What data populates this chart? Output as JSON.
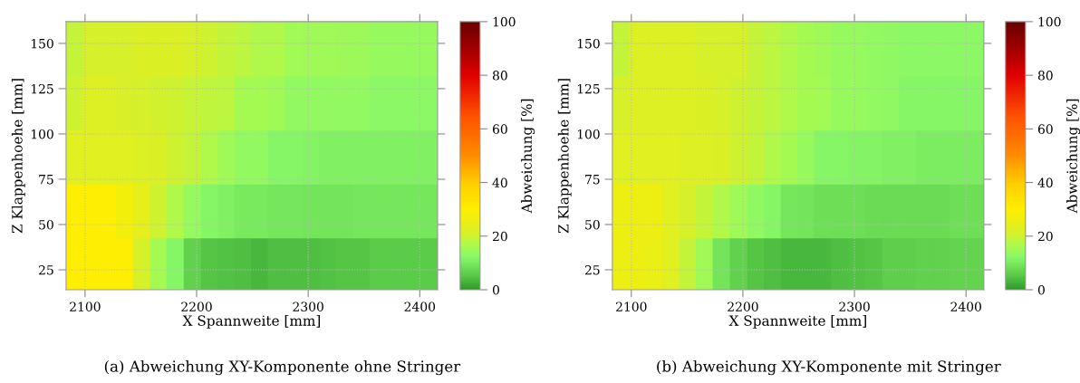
{
  "chart_data": [
    {
      "type": "heatmap",
      "xlabel": "X Spannweite [mm]",
      "ylabel": "Z Klappenhoehe [mm]",
      "clabel": "Abweichung [%]",
      "annotations": [
        "(a) Abweichung XY-Komponente ohne Stringer"
      ],
      "x": [
        2091,
        2106,
        2121,
        2136,
        2151,
        2166,
        2181,
        2197,
        2212,
        2227,
        2242,
        2257,
        2272,
        2287,
        2303,
        2318,
        2333,
        2348,
        2363,
        2378,
        2393,
        2409
      ],
      "y": [
        147,
        117,
        87.5,
        57.5,
        28
      ],
      "cells": [
        [
          19,
          21,
          21,
          21,
          21.5,
          21.5,
          21.5,
          21,
          20,
          19,
          18,
          17,
          17,
          15.5,
          15,
          15,
          14.5,
          14.5,
          14,
          14,
          14,
          14
        ],
        [
          20,
          22,
          22,
          21,
          21,
          20.5,
          20,
          19.5,
          18.5,
          18,
          16,
          16,
          15,
          13.5,
          13.5,
          13.5,
          13.5,
          13.5,
          12.5,
          12.5,
          12.5,
          12.5
        ],
        [
          23,
          23,
          23,
          23,
          22,
          21.5,
          20,
          19,
          17,
          15,
          13.5,
          13.5,
          12,
          12,
          11.5,
          11,
          11,
          11,
          11,
          11,
          11,
          11
        ],
        [
          30,
          30,
          30,
          27,
          24,
          20,
          17,
          14,
          12,
          11,
          10,
          10,
          9.5,
          9.5,
          9,
          9,
          9,
          9.5,
          9.5,
          9.5,
          9.5,
          9.5
        ],
        [
          30,
          30,
          30,
          30,
          21,
          16,
          12,
          6.5,
          5,
          4.5,
          4,
          3.5,
          4,
          4,
          4,
          4.5,
          5,
          5,
          5.5,
          5.5,
          5.5,
          5.5
        ]
      ],
      "xlim": [
        2083,
        2416
      ],
      "ylim": [
        14,
        162
      ],
      "xticks": [
        2100,
        2200,
        2300,
        2400
      ],
      "yticks": [
        25,
        50,
        75,
        100,
        125,
        150
      ],
      "clim": [
        0,
        100
      ],
      "cticks": [
        0,
        20,
        40,
        60,
        80,
        100
      ],
      "grid": true
    },
    {
      "type": "heatmap",
      "xlabel": "X Spannweite [mm]",
      "ylabel": "Z Klappenhoehe [mm]",
      "clabel": "Abweichung [%]",
      "annotations": [
        "(b) Abweichung XY-Komponente mit Stringer"
      ],
      "x": [
        2091,
        2106,
        2121,
        2136,
        2151,
        2166,
        2181,
        2197,
        2212,
        2227,
        2242,
        2257,
        2272,
        2287,
        2303,
        2318,
        2333,
        2348,
        2363,
        2378,
        2393,
        2409
      ],
      "y": [
        147,
        117,
        87.5,
        57.5,
        28
      ],
      "cells": [
        [
          19,
          22,
          22,
          22,
          22,
          21,
          21,
          21,
          19,
          18,
          17,
          16,
          15,
          14,
          14,
          13.5,
          13,
          12.5,
          12.5,
          12.5,
          12.5,
          12.5
        ],
        [
          21,
          22,
          22,
          22,
          22,
          21.5,
          21,
          20,
          19,
          18,
          17,
          16,
          15.5,
          14,
          14,
          13.5,
          13,
          12,
          12,
          12,
          12,
          12
        ],
        [
          23,
          23,
          23,
          23,
          22,
          22,
          21.5,
          20,
          19,
          17,
          16,
          14,
          12,
          12,
          11.5,
          11.5,
          11,
          11,
          10.5,
          10.5,
          10.5,
          10.5
        ],
        [
          26,
          26,
          26,
          23,
          21,
          19,
          17,
          15,
          13,
          12,
          9.5,
          9,
          8.5,
          8.5,
          8.5,
          8,
          8,
          8,
          8,
          8,
          8.5,
          8.5
        ],
        [
          26,
          26,
          25,
          23,
          19,
          15,
          9,
          6.5,
          5,
          4,
          3.5,
          3.5,
          3.5,
          4,
          4.5,
          5,
          6,
          6,
          6.5,
          6.5,
          7,
          7
        ]
      ],
      "xlim": [
        2083,
        2416
      ],
      "ylim": [
        14,
        162
      ],
      "xticks": [
        2100,
        2200,
        2300,
        2400
      ],
      "yticks": [
        25,
        50,
        75,
        100,
        125,
        150
      ],
      "clim": [
        0,
        100
      ],
      "cticks": [
        0,
        20,
        40,
        60,
        80,
        100
      ],
      "grid": true
    }
  ]
}
